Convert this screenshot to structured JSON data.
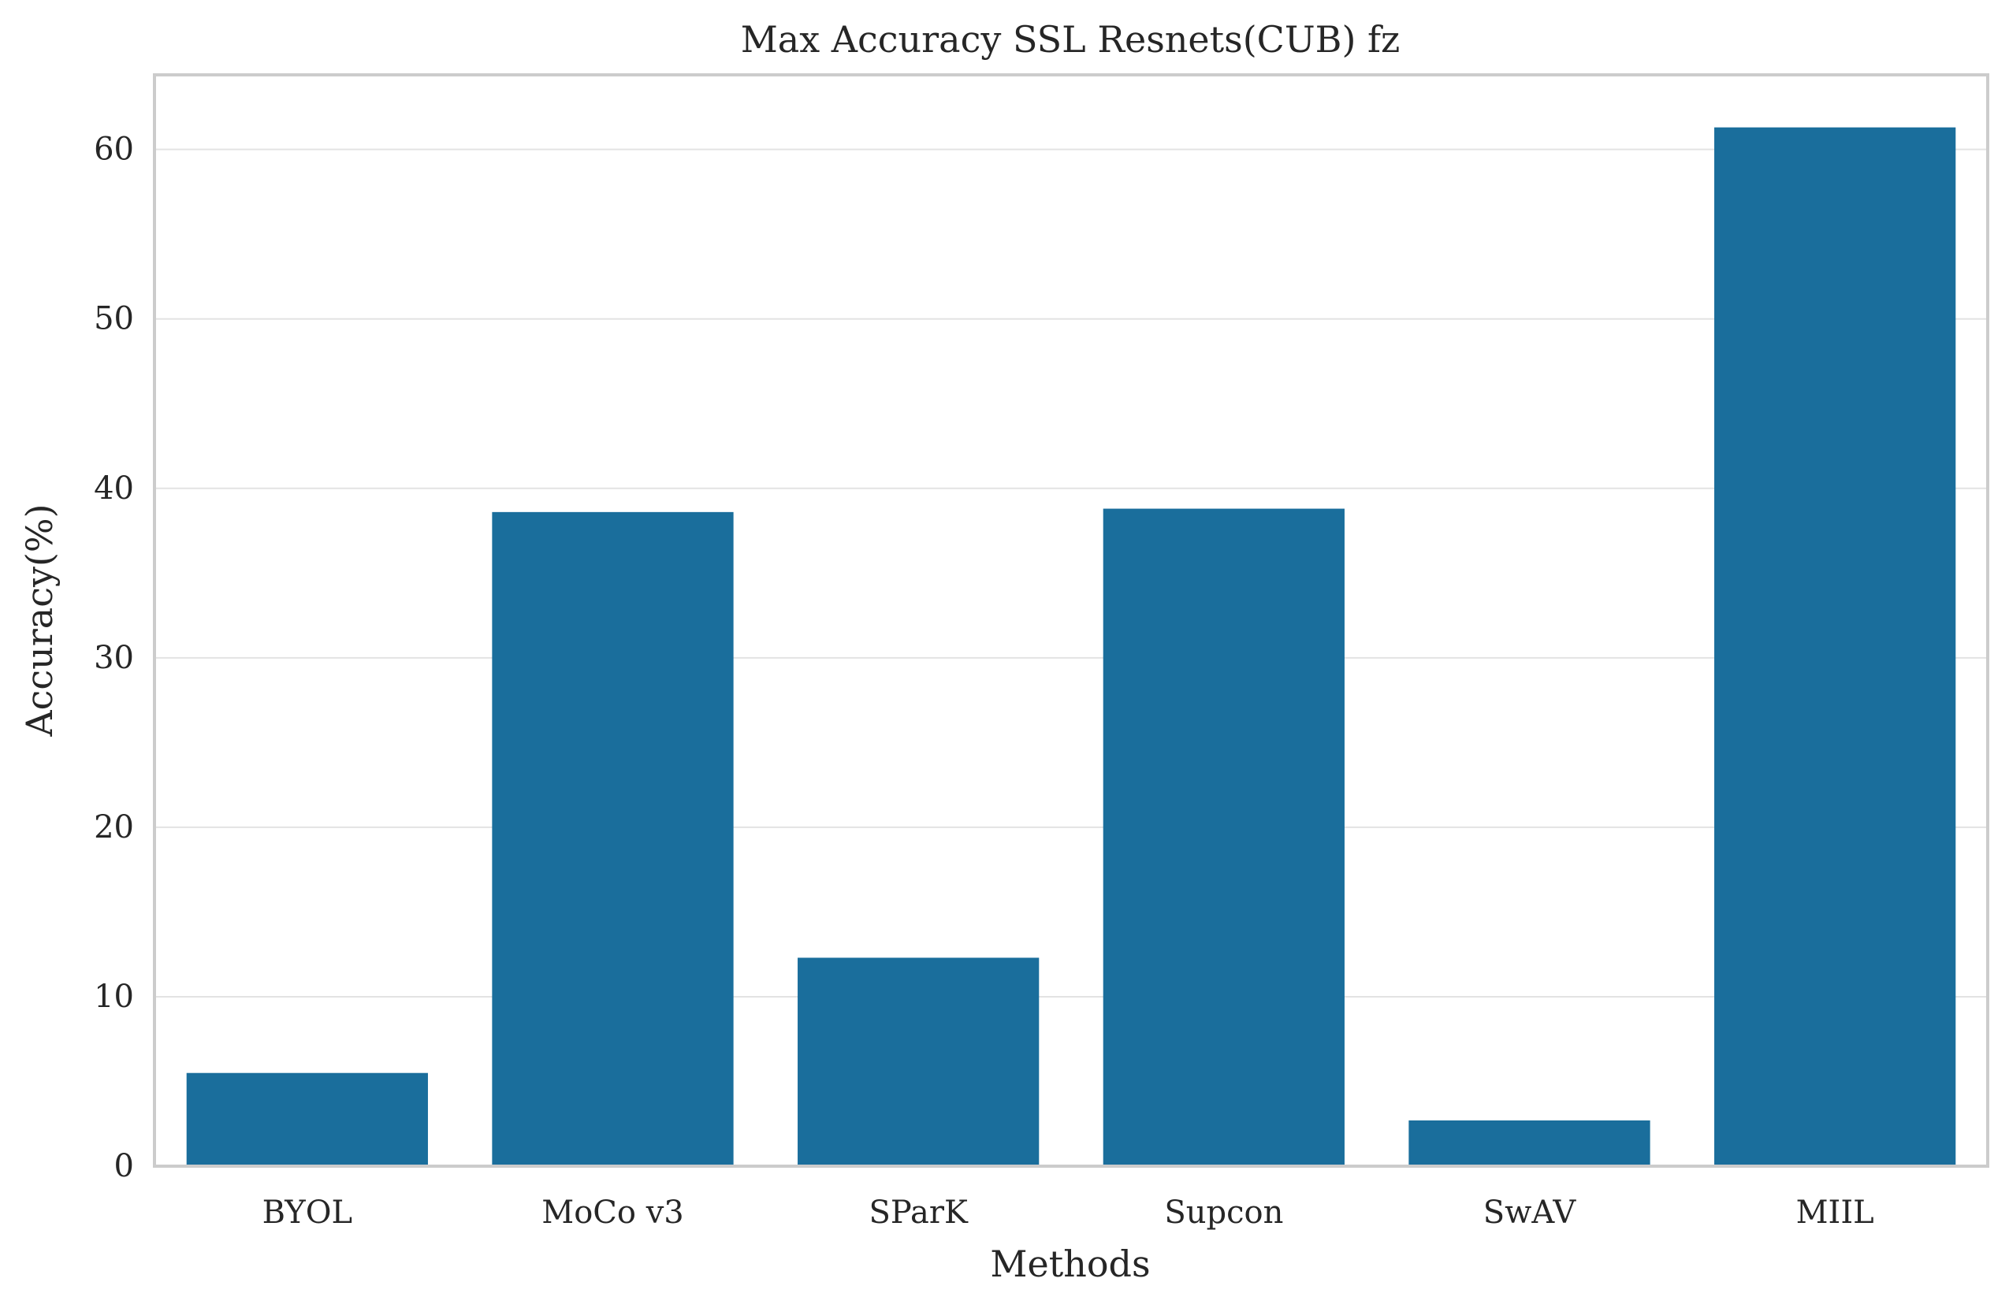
{
  "chart_data": {
    "type": "bar",
    "title": "Max Accuracy SSL Resnets(CUB) fz",
    "xlabel": "Methods",
    "ylabel": "Accuracy(%)",
    "categories": [
      "BYOL",
      "MoCo v3",
      "SParK",
      "Supcon",
      "SwAV",
      "MIIL"
    ],
    "values": [
      5.5,
      38.6,
      12.3,
      38.8,
      2.7,
      61.3
    ],
    "ylim": [
      0,
      64.4
    ],
    "yticks": [
      0,
      10,
      20,
      30,
      40,
      50,
      60
    ],
    "grid": "horizontal",
    "bar_color": "#1a6e9c"
  }
}
